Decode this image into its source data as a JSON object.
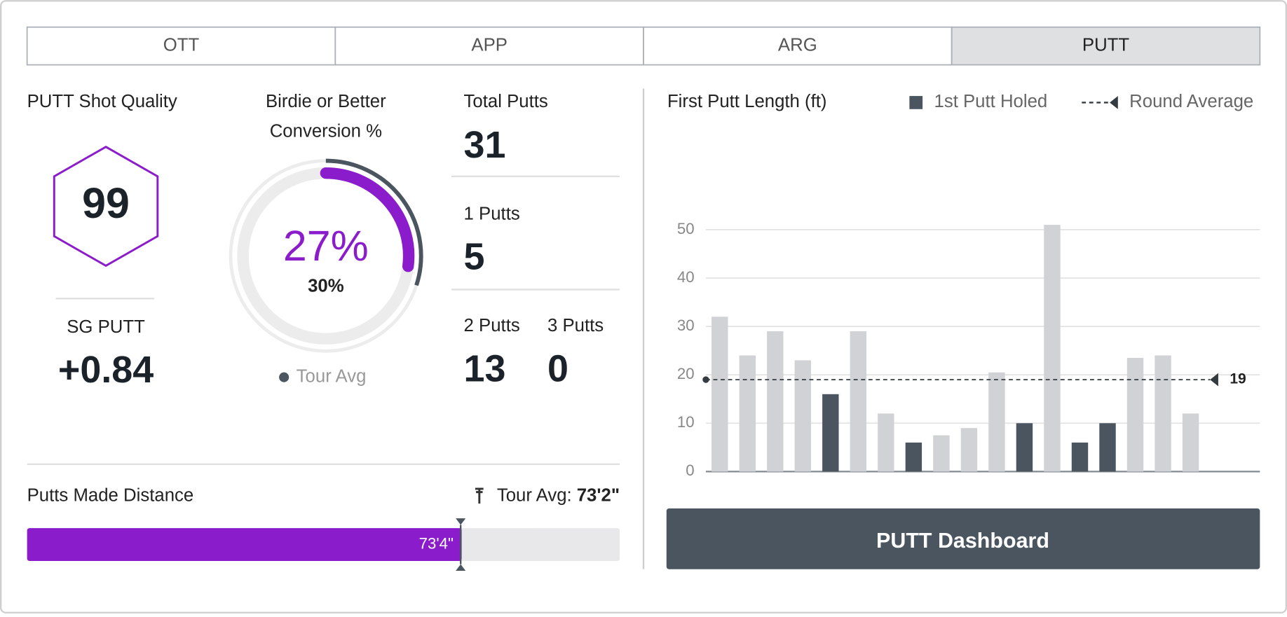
{
  "tabs": {
    "items": [
      "OTT",
      "APP",
      "ARG",
      "PUTT"
    ],
    "active": 3
  },
  "shot_quality": {
    "title": "PUTT Shot Quality",
    "score": 99,
    "sg_label": "SG PUTT",
    "sg_value": "+0.84"
  },
  "conversion": {
    "title_lines": [
      "Birdie or Better",
      "Conversion %"
    ],
    "value": 27,
    "value_label": "27%",
    "tour_avg": 30,
    "tour_avg_label": "30%",
    "legend": "Tour Avg"
  },
  "putts": {
    "total_label": "Total Putts",
    "total": 31,
    "one_label": "1 Putts",
    "one": 5,
    "two_label": "2 Putts",
    "two": 13,
    "three_label": "3 Putts",
    "three": 0
  },
  "putts_made_distance": {
    "title": "Putts Made Distance",
    "tour_avg_prefix": "Tour Avg:",
    "tour_avg": 878,
    "tour_avg_label": "73'2\"",
    "value": 880,
    "value_label": "73'4\"",
    "xlim": [
      0,
      1200
    ]
  },
  "chart_data": {
    "type": "bar",
    "title": "First Putt Length (ft)",
    "values": [
      32,
      24,
      29,
      23,
      16,
      29,
      12,
      6,
      7.5,
      9,
      20.5,
      10,
      51,
      6,
      10,
      23.5,
      24,
      12
    ],
    "holed": [
      false,
      false,
      false,
      false,
      true,
      false,
      false,
      true,
      false,
      false,
      false,
      true,
      false,
      true,
      true,
      false,
      false,
      false
    ],
    "color": "#d0d2d5",
    "holed_name": "1st Putt Holed",
    "holed_color": "#4a555f",
    "average": {
      "name": "Round Average",
      "value": 19,
      "color": "#333a40"
    },
    "ylim": [
      0,
      50
    ],
    "yticks": [
      0,
      10,
      20,
      30,
      40,
      50
    ],
    "grid": true
  },
  "button": "PUTT Dashboard"
}
